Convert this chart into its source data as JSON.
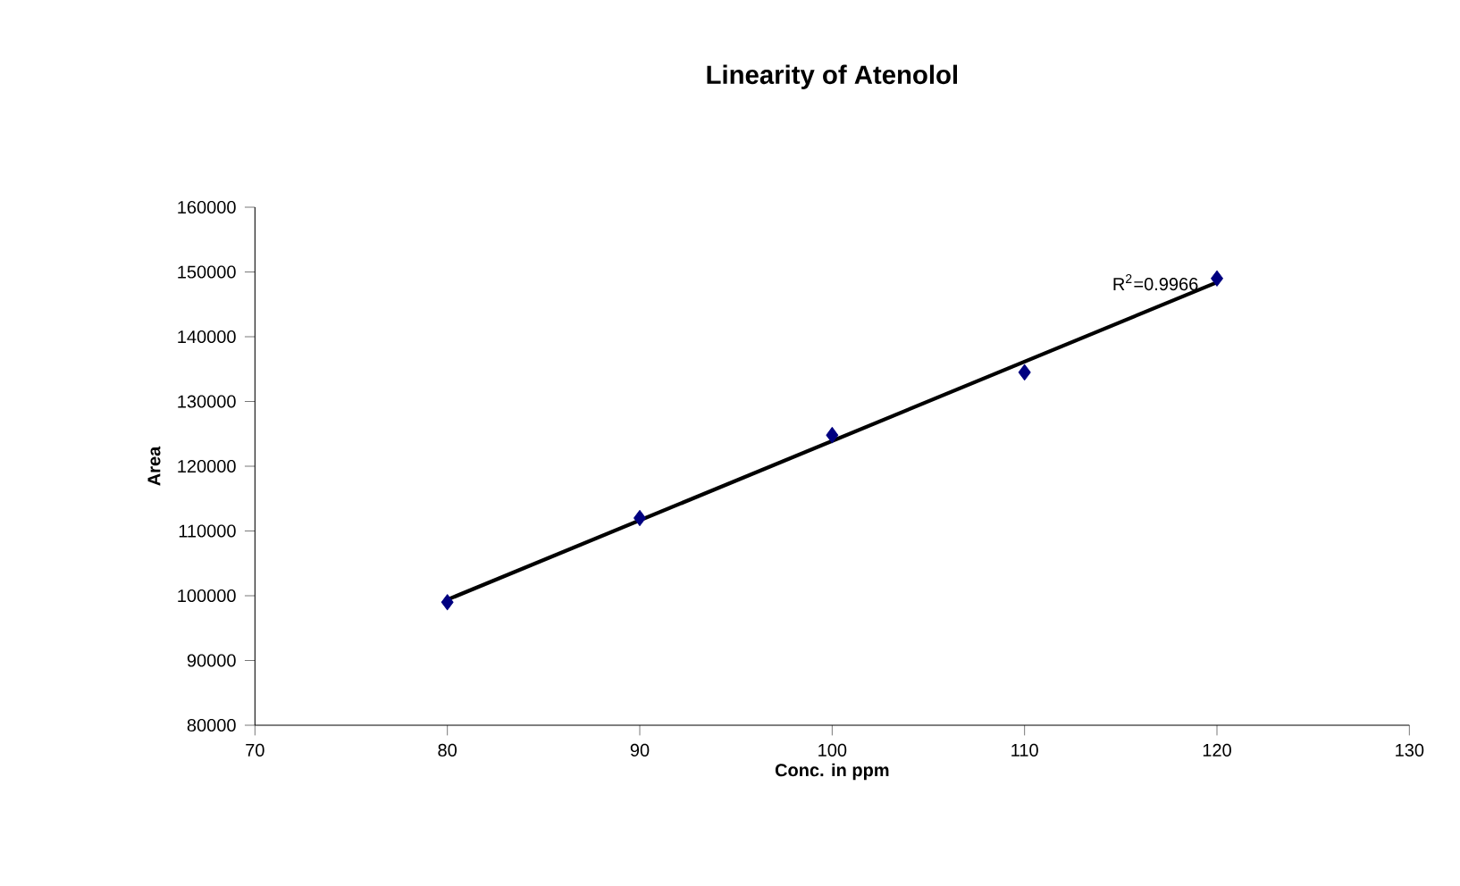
{
  "chart_data": {
    "type": "scatter",
    "title": "Linearity of Atenolol",
    "xlabel": "Conc. in ppm",
    "ylabel": "Area",
    "xlim": [
      70,
      130
    ],
    "xticks": [
      70,
      80,
      90,
      100,
      110,
      120,
      130
    ],
    "ylim": [
      80000,
      160000
    ],
    "yticks": [
      80000,
      90000,
      100000,
      110000,
      120000,
      130000,
      140000,
      150000,
      160000
    ],
    "marker": "diamond",
    "grid": false,
    "series": [
      {
        "color": "#000080",
        "x": [
          80,
          90,
          100,
          110,
          120
        ],
        "values": [
          99000,
          112000,
          124800,
          134500,
          149000
        ]
      },
      {
        "type": "line",
        "color": "#000000",
        "marker": "none",
        "line_style": "solid",
        "x": [
          80,
          120
        ],
        "values": [
          99400,
          148400
        ]
      }
    ],
    "annotations": [
      "R$^{2}$=0.9966"
    ]
  }
}
